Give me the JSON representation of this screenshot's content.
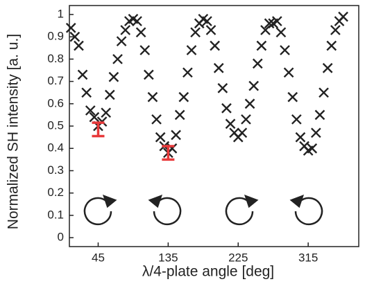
{
  "chart_data": {
    "type": "scatter",
    "xlabel": "λ/4-plate angle [deg]",
    "ylabel": "Normalized SH intensity [a. u.]",
    "x": [
      10,
      15,
      20,
      25,
      30,
      35,
      40,
      45,
      50,
      55,
      60,
      65,
      70,
      75,
      80,
      85,
      90,
      95,
      100,
      105,
      110,
      115,
      120,
      125,
      130,
      135,
      140,
      145,
      150,
      155,
      160,
      165,
      170,
      175,
      180,
      185,
      190,
      195,
      200,
      205,
      210,
      215,
      220,
      225,
      230,
      235,
      240,
      245,
      250,
      255,
      260,
      265,
      270,
      275,
      280,
      285,
      290,
      295,
      300,
      305,
      310,
      315,
      320,
      325,
      330,
      335,
      340,
      345,
      350,
      355,
      360
    ],
    "series": [
      {
        "color": "#222222",
        "values": [
          0.94,
          0.9,
          0.86,
          0.73,
          0.65,
          0.57,
          0.54,
          0.5,
          0.52,
          0.56,
          0.64,
          0.72,
          0.8,
          0.88,
          0.93,
          0.97,
          0.98,
          0.97,
          0.92,
          0.84,
          0.73,
          0.63,
          0.53,
          0.45,
          0.41,
          0.38,
          0.4,
          0.46,
          0.55,
          0.63,
          0.74,
          0.84,
          0.92,
          0.96,
          0.98,
          0.97,
          0.93,
          0.86,
          0.76,
          0.67,
          0.58,
          0.51,
          0.47,
          0.45,
          0.47,
          0.53,
          0.6,
          0.68,
          0.78,
          0.86,
          0.93,
          0.96,
          0.96,
          0.97,
          0.92,
          0.84,
          0.74,
          0.63,
          0.53,
          0.45,
          0.41,
          0.39,
          0.4,
          0.47,
          0.55,
          0.65,
          0.76,
          0.86,
          0.93,
          0.97,
          0.99
        ]
      }
    ],
    "error_bars": [
      {
        "x": 45,
        "value": 0.485,
        "error": 0.03,
        "color": "#e8393a"
      },
      {
        "x": 135,
        "value": 0.38,
        "error": 0.03,
        "color": "#e8393a"
      }
    ],
    "xlim": [
      8,
      380
    ],
    "ylim": [
      -0.04,
      1.04
    ],
    "xticks": [
      45,
      135,
      225,
      315
    ],
    "yticks": [
      0,
      0.1,
      0.2,
      0.3,
      0.4,
      0.5,
      0.6,
      0.7,
      0.8,
      0.9,
      1
    ]
  }
}
